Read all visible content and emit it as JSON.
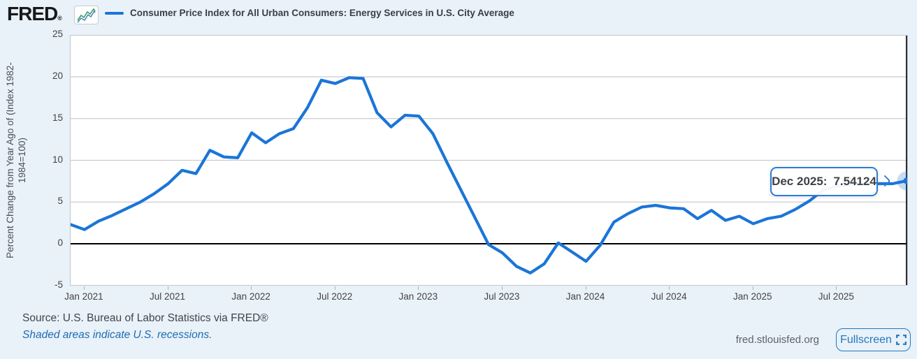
{
  "header": {
    "logo": "FRED",
    "logo_registered": "®",
    "sparkline_icon": "fred-sparkline-icon",
    "legend_label": "Consumer Price Index for All Urban Consumers: Energy Services in U.S. City Average"
  },
  "chart_data": {
    "type": "line",
    "title": "Consumer Price Index for All Urban Consumers: Energy Services in U.S. City Average",
    "ylabel_line1": "Percent Change from Year Ago of (Index 1982-",
    "ylabel_line2": "1984=100)",
    "ylim": [
      -5,
      25
    ],
    "yticks": [
      25,
      20,
      15,
      10,
      5,
      0,
      -5
    ],
    "gridlines": [
      20,
      15,
      10,
      5
    ],
    "zero_line_value": 0,
    "grid": "horizontal",
    "legend_position": "top-left",
    "line_color": "#1b75d8",
    "crosshair_color": "#15181b",
    "x": [
      "2020-12",
      "2021-01",
      "2021-02",
      "2021-03",
      "2021-04",
      "2021-05",
      "2021-06",
      "2021-07",
      "2021-08",
      "2021-09",
      "2021-10",
      "2021-11",
      "2021-12",
      "2022-01",
      "2022-02",
      "2022-03",
      "2022-04",
      "2022-05",
      "2022-06",
      "2022-07",
      "2022-08",
      "2022-09",
      "2022-10",
      "2022-11",
      "2022-12",
      "2023-01",
      "2023-02",
      "2023-03",
      "2023-04",
      "2023-05",
      "2023-06",
      "2023-07",
      "2023-08",
      "2023-09",
      "2023-10",
      "2023-11",
      "2023-12",
      "2024-01",
      "2024-02",
      "2024-03",
      "2024-04",
      "2024-05",
      "2024-06",
      "2024-07",
      "2024-08",
      "2024-09",
      "2024-10",
      "2024-11",
      "2024-12",
      "2025-01",
      "2025-02",
      "2025-03",
      "2025-04",
      "2025-05",
      "2025-06",
      "2025-07",
      "2025-08",
      "2025-09",
      "2025-10",
      "2025-11",
      "2025-12"
    ],
    "values": [
      2.3,
      1.7,
      2.7,
      3.4,
      4.2,
      5.0,
      6.0,
      7.2,
      8.8,
      8.4,
      11.2,
      10.4,
      10.3,
      13.3,
      12.1,
      13.2,
      13.8,
      16.3,
      19.6,
      19.2,
      19.9,
      19.8,
      15.7,
      14.0,
      15.4,
      15.3,
      13.2,
      9.8,
      6.5,
      3.2,
      -0.1,
      -1.1,
      -2.7,
      -3.5,
      -2.4,
      0.1,
      -1.0,
      -2.1,
      -0.2,
      2.6,
      3.6,
      4.4,
      4.6,
      4.3,
      4.2,
      3.0,
      4.0,
      2.8,
      3.3,
      2.4,
      3.0,
      3.3,
      4.1,
      5.1,
      6.4,
      6.9,
      7.1,
      7.2,
      7.2,
      7.2,
      7.54124
    ],
    "xticks": [
      "Jan 2021",
      "Jul 2021",
      "Jan 2022",
      "Jul 2022",
      "Jan 2023",
      "Jul 2023",
      "Jan 2024",
      "Jul 2024",
      "Jan 2025",
      "Jul 2025"
    ],
    "highlighted_point": {
      "x": "2025-12",
      "value": 7.54124
    }
  },
  "tooltip": {
    "label": "Dec 2025:",
    "value": "7.54124"
  },
  "footer": {
    "source": "Source: U.S. Bureau of Labor Statistics via FRED®",
    "recession_note": "Shaded areas indicate U.S. recessions.",
    "site": "fred.stlouisfed.org",
    "fullscreen_label": "Fullscreen"
  }
}
